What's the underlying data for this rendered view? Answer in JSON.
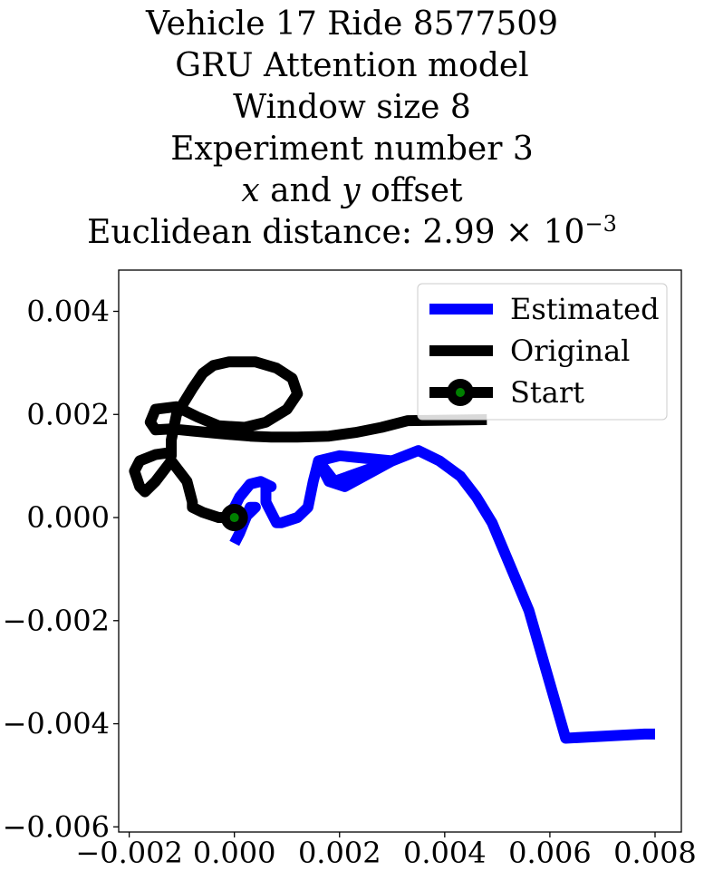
{
  "title_lines": {
    "line1": "Vehicle 17 Ride 8577509",
    "line2": "GRU Attention model",
    "line3": "Window size 8",
    "line4": "Experiment number 3",
    "line5_var_x": "x",
    "line5_and": " and ",
    "line5_var_y": "y",
    "line5_rest": " offset",
    "line6_prefix": "Euclidean distance: 2.99 × 10",
    "line6_exponent": "−3"
  },
  "chart_data": {
    "type": "line",
    "xlim": [
      -0.0022,
      0.0085
    ],
    "ylim": [
      -0.0061,
      0.0048
    ],
    "x_ticks": [
      {
        "value": -0.002,
        "label": "−0.002"
      },
      {
        "value": 0.0,
        "label": "0.000"
      },
      {
        "value": 0.002,
        "label": "0.002"
      },
      {
        "value": 0.004,
        "label": "0.004"
      },
      {
        "value": 0.006,
        "label": "0.006"
      },
      {
        "value": 0.008,
        "label": "0.008"
      }
    ],
    "y_ticks": [
      {
        "value": 0.004,
        "label": "0.004"
      },
      {
        "value": 0.002,
        "label": "0.002"
      },
      {
        "value": 0.0,
        "label": "0.000"
      },
      {
        "value": -0.002,
        "label": "−0.002"
      },
      {
        "value": -0.004,
        "label": "−0.004"
      },
      {
        "value": -0.006,
        "label": "−0.006"
      }
    ],
    "grid": false,
    "legend_position": "top-right",
    "series": [
      {
        "name": "Estimated",
        "color": "#0000ff",
        "points": [
          [
            0.008,
            -0.0042
          ],
          [
            0.0078,
            -0.0042
          ],
          [
            0.0063,
            -0.00428
          ],
          [
            0.0056,
            -0.0018
          ],
          [
            0.0049,
            -0.0001
          ],
          [
            0.0046,
            0.0004
          ],
          [
            0.0043,
            0.0008
          ],
          [
            0.0039,
            0.0011
          ],
          [
            0.0035,
            0.0013
          ],
          [
            0.003,
            0.0011
          ],
          [
            0.0021,
            0.0006
          ],
          [
            0.0018,
            0.0007
          ],
          [
            0.0016,
            0.0011
          ],
          [
            0.002,
            0.0012
          ],
          [
            0.003,
            0.0011
          ],
          [
            0.0019,
            0.0007
          ],
          [
            0.0016,
            0.0011
          ],
          [
            0.0015,
            0.0007
          ],
          [
            0.0014,
            0.0002
          ],
          [
            0.0012,
            0.0
          ],
          [
            0.0009,
            -0.0001
          ],
          [
            0.0008,
            -0.0001
          ],
          [
            0.0006,
            0.0003
          ],
          [
            0.0006,
            0.0006
          ],
          [
            0.0007,
            0.0006
          ],
          [
            0.0005,
            0.0007
          ],
          [
            0.0003,
            0.00065
          ],
          [
            0.0001,
            0.0004
          ],
          [
            0.0,
            0.0002
          ],
          [
            -0.0001,
            0.0001
          ],
          [
            0.0001,
            -0.0001
          ],
          [
            0.0004,
            0.0002
          ],
          [
            0.0003,
            0.0002
          ],
          [
            0.0001,
            -0.0003
          ],
          [
            0.0,
            -0.0005
          ]
        ]
      },
      {
        "name": "Original",
        "color": "#000000",
        "points": [
          [
            0.0048,
            0.0019
          ],
          [
            0.0033,
            0.00188
          ],
          [
            0.0028,
            0.00175
          ],
          [
            0.0023,
            0.00165
          ],
          [
            0.0018,
            0.00158
          ],
          [
            0.0012,
            0.00156
          ],
          [
            0.0007,
            0.00156
          ],
          [
            0.0003,
            0.00158
          ],
          [
            -0.0003,
            0.00163
          ],
          [
            -0.0008,
            0.00168
          ],
          [
            -0.0012,
            0.00172
          ],
          [
            -0.0015,
            0.0017
          ],
          [
            -0.0016,
            0.00185
          ],
          [
            -0.0015,
            0.0021
          ],
          [
            -0.0011,
            0.00215
          ],
          [
            -0.0007,
            0.00195
          ],
          [
            -0.0003,
            0.00178
          ],
          [
            0.0002,
            0.00175
          ],
          [
            0.0006,
            0.00185
          ],
          [
            0.001,
            0.0021
          ],
          [
            0.0012,
            0.0024
          ],
          [
            0.0011,
            0.0027
          ],
          [
            0.0008,
            0.0029
          ],
          [
            0.0004,
            0.00302
          ],
          [
            -0.0001,
            0.00302
          ],
          [
            -0.0004,
            0.00295
          ],
          [
            -0.0006,
            0.0028
          ],
          [
            -0.0008,
            0.0025
          ],
          [
            -0.0011,
            0.002
          ],
          [
            -0.0012,
            0.0015
          ],
          [
            -0.0012,
            0.0012
          ],
          [
            -0.0013,
            0.00125
          ],
          [
            -0.0015,
            0.00122
          ],
          [
            -0.0018,
            0.0011
          ],
          [
            -0.0019,
            0.0009
          ],
          [
            -0.0018,
            0.0006
          ],
          [
            -0.0017,
            0.0005
          ],
          [
            -0.0015,
            0.0007
          ],
          [
            -0.0012,
            0.0011
          ],
          [
            -0.0009,
            0.0007
          ],
          [
            -0.0008,
            0.0003
          ],
          [
            -0.0008,
            0.0002
          ],
          [
            -0.0006,
            0.0001
          ],
          [
            -0.0003,
            0.0
          ],
          [
            0.0,
            0.0
          ]
        ]
      },
      {
        "name": "Start",
        "color": "#000000",
        "marker_fill": "#008000",
        "points": [
          [
            0.0,
            0.0
          ]
        ]
      }
    ]
  }
}
